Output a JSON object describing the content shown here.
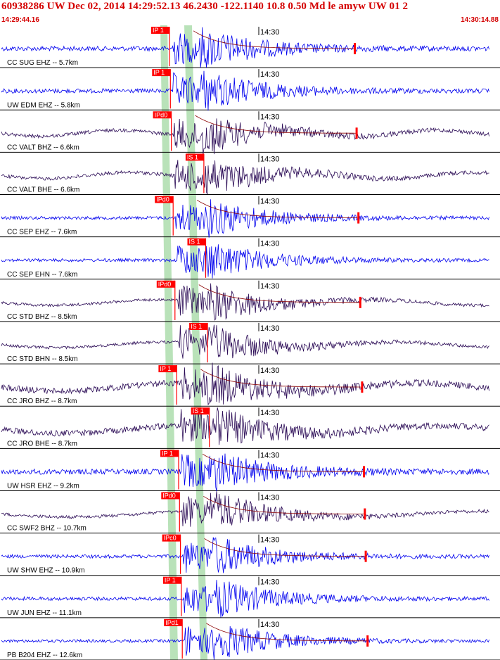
{
  "header": {
    "title": "60938286 UW Dec 02, 2014 14:29:52.13    46.2430 -122.1140 10.8 0.50 Md le amyw UW 01    2",
    "start_time": "14:29:44.16",
    "end_time": "14:30:14.88"
  },
  "time_tick_label": "14:30",
  "colors": {
    "header_red": "#d40000",
    "blue_trace": "#0000ee",
    "purple_trace": "#2a0a55",
    "pick_box": "#ff0000",
    "green_band": "#b9e2b9",
    "separator": "#000000"
  },
  "traces": [
    {
      "label": "CC SUG EHZ -- 5.7km",
      "pick": "IP 1",
      "color": "blue",
      "amp": 0.35,
      "onset": 0.38
    },
    {
      "label": "UW EDM EHZ -- 5.8km",
      "pick": "IP 1",
      "color": "blue",
      "amp": 0.3,
      "onset": 0.38
    },
    {
      "label": "CC VALT BHZ -- 6.6km",
      "pick": "IPd0",
      "color": "purple",
      "amp": 0.2,
      "onset": 0.37
    },
    {
      "label": "CC VALT BHE -- 6.6km",
      "pick": "IS 1",
      "color": "purple",
      "amp": 0.2,
      "onset": 0.41
    },
    {
      "label": "CC SEP EHZ -- 7.6km",
      "pick": "IPd0",
      "color": "blue",
      "amp": 0.15,
      "onset": 0.39
    },
    {
      "label": "CC SEP EHN -- 7.6km",
      "pick": "IS 1",
      "color": "blue",
      "amp": 0.15,
      "onset": 0.43
    },
    {
      "label": "CC STD BHZ -- 8.5km",
      "pick": "IPd0",
      "color": "purple",
      "amp": 0.1,
      "onset": 0.38
    },
    {
      "label": "CC STD BHN -- 8.5km",
      "pick": "IS 1",
      "color": "purple",
      "amp": 0.1,
      "onset": 0.41
    },
    {
      "label": "CC JRO BHZ -- 8.7km",
      "pick": "IP 1",
      "color": "purple",
      "amp": 0.55,
      "onset": 0.38
    },
    {
      "label": "CC JRO BHE -- 8.7km",
      "pick": "IS 1",
      "color": "purple",
      "amp": 0.55,
      "onset": 0.41
    },
    {
      "label": "UW HSR EHZ -- 9.2km",
      "pick": "IP 1",
      "color": "blue",
      "amp": 0.45,
      "onset": 0.38
    },
    {
      "label": "CC SWF2 BHZ -- 10.7km",
      "pick": "IPd0",
      "color": "purple",
      "amp": 0.15,
      "onset": 0.39
    },
    {
      "label": "UW SHW EHZ -- 10.9km",
      "pick": "IPc0",
      "color": "blue",
      "amp": 0.2,
      "onset": 0.4
    },
    {
      "label": "UW JUN EHZ -- 11.1km",
      "pick": "IP 1",
      "color": "blue",
      "amp": 0.2,
      "onset": 0.39
    },
    {
      "label": "PB B204 EHZ -- 12.6km",
      "pick": "IPd1",
      "color": "blue",
      "amp": 0.12,
      "onset": 0.39
    }
  ]
}
